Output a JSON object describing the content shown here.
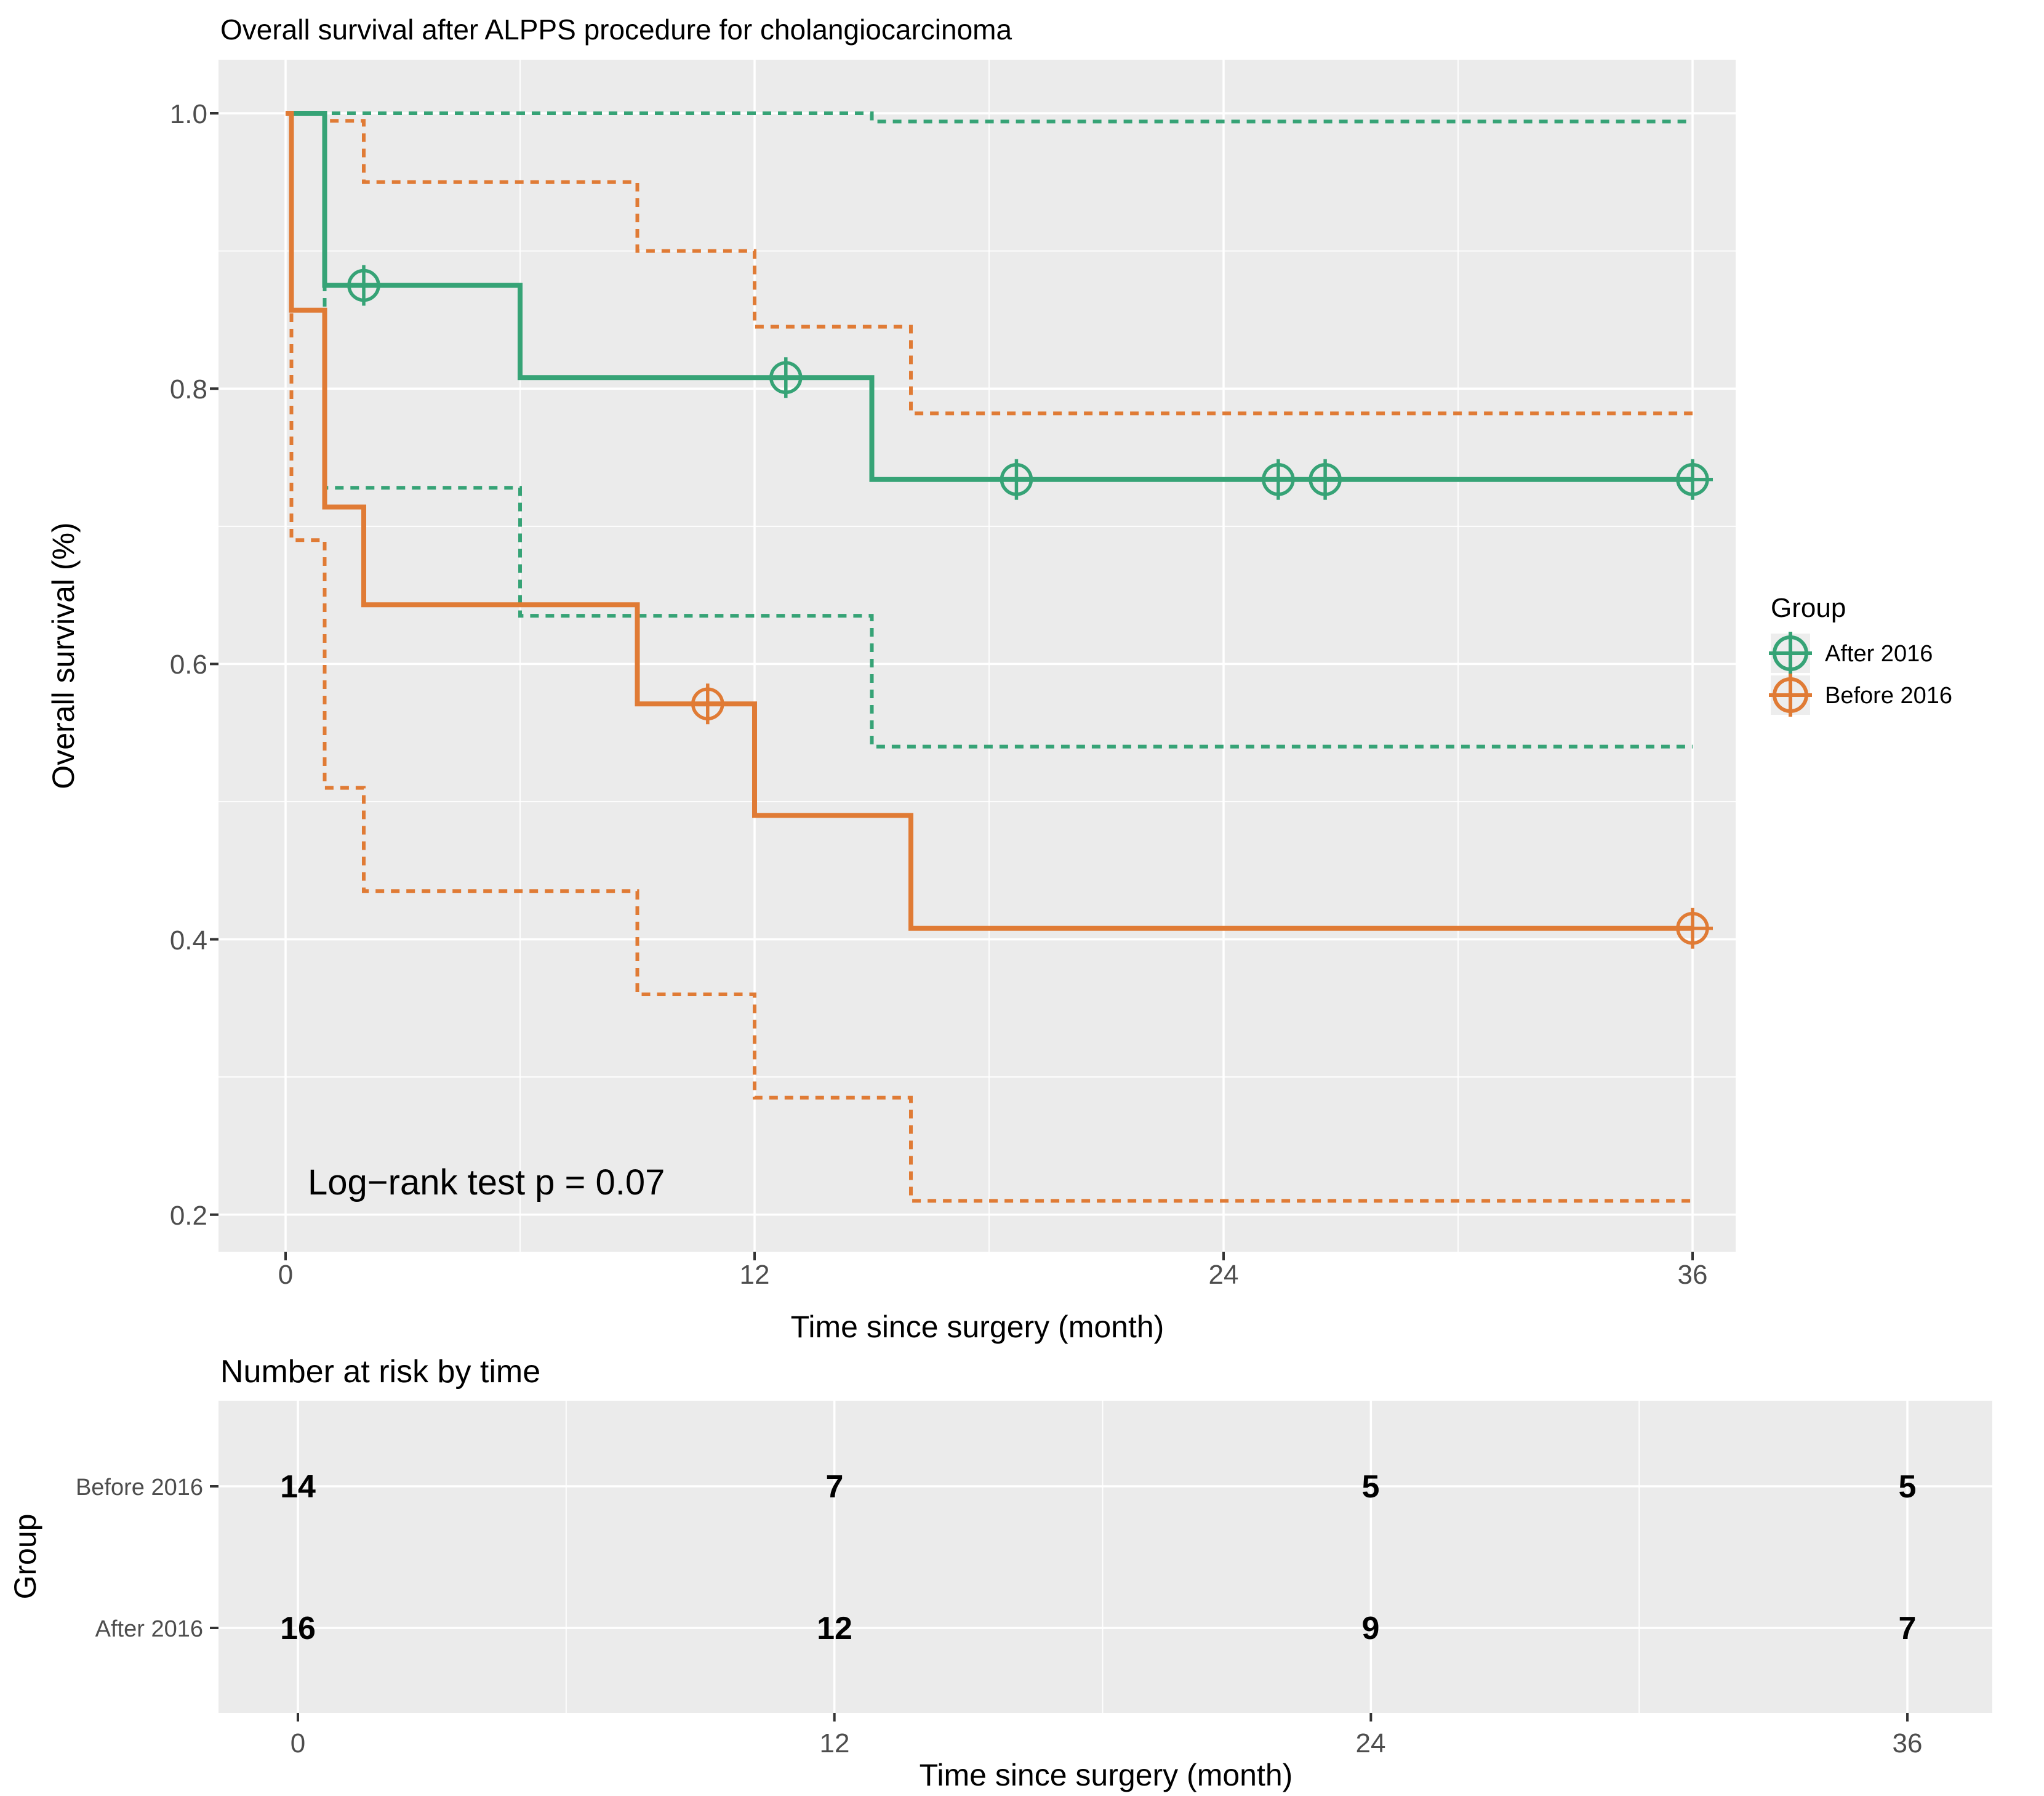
{
  "chart_data": {
    "type": "line",
    "subtype": "kaplan-meier-step",
    "title": "Overall survival after ALPPS procedure for cholangiocarcinoma",
    "xlabel": "Time since surgery (month)",
    "ylabel": "Overall survival (%)",
    "xlim": [
      0,
      36
    ],
    "ylim": [
      0.2,
      1.0
    ],
    "grid": "on",
    "panel_bg": "#EBEBEB",
    "grid_color": "#FFFFFF",
    "tick_color": "#333333",
    "tick_text_color": "#4d4d4d",
    "x_major_ticks": [
      0,
      12,
      24,
      36
    ],
    "x_minor_ticks": [
      6,
      18,
      30
    ],
    "x_tick_labels": [
      "0",
      "12",
      "24",
      "36"
    ],
    "y_major_ticks": [
      1.0,
      0.8,
      0.6,
      0.4,
      0.2
    ],
    "y_minor_ticks": [
      0.9,
      0.7,
      0.5,
      0.3
    ],
    "y_tick_labels": [
      "1.0",
      "0.8",
      "0.6",
      "0.4",
      "0.2"
    ],
    "annotation": {
      "text": "Log−rank test  p  =  0.07"
    },
    "legend": {
      "title": "Group",
      "position": "right",
      "key_bg": "#EDEDED",
      "entries": [
        {
          "label": "After 2016",
          "color": "#36A376",
          "symbol": "circle-plus"
        },
        {
          "label": "Before 2016",
          "color": "#E07B35",
          "symbol": "circle-plus"
        }
      ]
    },
    "groups": [
      {
        "name": "After 2016",
        "color": "#36A376",
        "survival": [
          [
            0,
            1.0
          ],
          [
            1,
            1.0
          ],
          [
            1,
            0.875
          ],
          [
            6,
            0.875
          ],
          [
            6,
            0.808
          ],
          [
            15,
            0.808
          ],
          [
            15,
            0.734
          ],
          [
            36,
            0.734
          ]
        ],
        "censors": [
          [
            2,
            0.875
          ],
          [
            12.8,
            0.808
          ],
          [
            18.7,
            0.734
          ],
          [
            25.4,
            0.734
          ],
          [
            26.6,
            0.734
          ],
          [
            36,
            0.734
          ]
        ],
        "ci_upper": [
          [
            0,
            1.0
          ],
          [
            15,
            1.0
          ],
          [
            15,
            0.994
          ],
          [
            36,
            0.994
          ]
        ],
        "ci_lower": [
          [
            1,
            1.0
          ],
          [
            1,
            0.728
          ],
          [
            6,
            0.728
          ],
          [
            6,
            0.635
          ],
          [
            15,
            0.635
          ],
          [
            15,
            0.54
          ],
          [
            36,
            0.54
          ]
        ]
      },
      {
        "name": "Before 2016",
        "color": "#E07B35",
        "survival": [
          [
            0,
            1.0
          ],
          [
            0.15,
            1.0
          ],
          [
            0.15,
            0.857
          ],
          [
            1,
            0.857
          ],
          [
            1,
            0.714
          ],
          [
            2,
            0.714
          ],
          [
            2,
            0.643
          ],
          [
            9,
            0.643
          ],
          [
            9,
            0.571
          ],
          [
            12,
            0.571
          ],
          [
            12,
            0.49
          ],
          [
            16,
            0.49
          ],
          [
            16,
            0.408
          ],
          [
            36,
            0.408
          ]
        ],
        "censors": [
          [
            10.8,
            0.571
          ],
          [
            36,
            0.408
          ]
        ],
        "ci_upper": [
          [
            0.15,
            1.0
          ],
          [
            1,
            1.0
          ],
          [
            1,
            0.9945
          ],
          [
            2,
            0.9945
          ],
          [
            2,
            0.95
          ],
          [
            9,
            0.95
          ],
          [
            9,
            0.9
          ],
          [
            12,
            0.9
          ],
          [
            12,
            0.845
          ],
          [
            16,
            0.845
          ],
          [
            16,
            0.782
          ],
          [
            36,
            0.782
          ]
        ],
        "ci_lower": [
          [
            0.15,
            1.0
          ],
          [
            0.15,
            0.69
          ],
          [
            1,
            0.69
          ],
          [
            1,
            0.51
          ],
          [
            2,
            0.51
          ],
          [
            2,
            0.435
          ],
          [
            9,
            0.435
          ],
          [
            9,
            0.36
          ],
          [
            12,
            0.36
          ],
          [
            12,
            0.285
          ],
          [
            16,
            0.285
          ],
          [
            16,
            0.21
          ],
          [
            36,
            0.21
          ]
        ]
      }
    ],
    "risk_table": {
      "title": "Number at risk by time",
      "ylabel": "Group",
      "xlabel": "Time since surgery (month)",
      "times": [
        0,
        12,
        24,
        36
      ],
      "x_tick_labels": [
        "0",
        "12",
        "24",
        "36"
      ],
      "rows": [
        {
          "label": "Before 2016",
          "values": [
            "14",
            "7",
            "5",
            "5"
          ]
        },
        {
          "label": "After 2016",
          "values": [
            "16",
            "12",
            "9",
            "7"
          ]
        }
      ]
    }
  }
}
